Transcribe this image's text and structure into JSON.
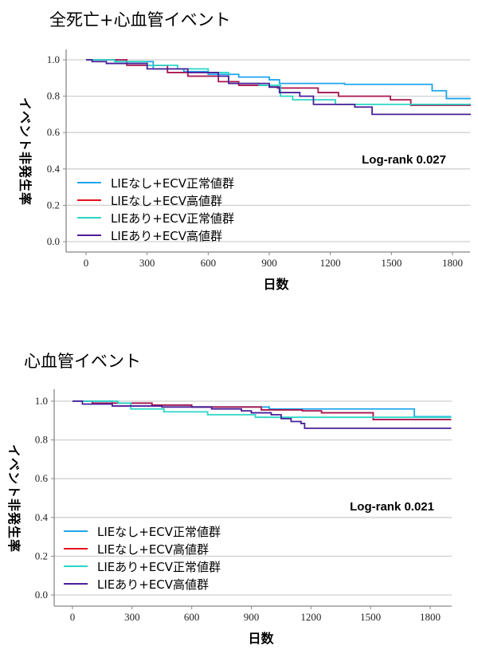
{
  "chart_data": [
    {
      "type": "line",
      "subtype": "kaplan-meier step",
      "title": "全死亡+心血管イベント",
      "xlabel": "日数",
      "ylabel": "イベント非発生率",
      "xticks": [
        0,
        300,
        600,
        900,
        1200,
        1500,
        1800
      ],
      "yticks": [
        "0.0",
        "0.2",
        "0.4",
        "0.6",
        "0.8",
        "1.0"
      ],
      "xlim": [
        -100,
        1890
      ],
      "ylim": [
        -0.05,
        1.05
      ],
      "grid": "horizontal",
      "legend_placement": "bottom-left",
      "annotation": "Log-rank 0.027",
      "series": [
        {
          "name": "LIEなし+ECV正常値群",
          "color": "#1ea5ee",
          "legend_color": "#1ea5ee",
          "x": [
            0,
            150,
            330,
            480,
            600,
            750,
            900,
            950,
            1270,
            1700,
            1770,
            1890
          ],
          "y": [
            1.0,
            0.99,
            0.95,
            0.935,
            0.92,
            0.905,
            0.89,
            0.87,
            0.865,
            0.83,
            0.787,
            0.787
          ]
        },
        {
          "name": "LIEなし+ECV高値群",
          "color": "#a8154d",
          "legend_color": "#e3101e",
          "x": [
            0,
            200,
            400,
            500,
            650,
            750,
            900,
            940,
            1140,
            1240,
            1495,
            1595,
            1890
          ],
          "y": [
            1.0,
            0.97,
            0.93,
            0.91,
            0.88,
            0.86,
            0.85,
            0.845,
            0.82,
            0.8,
            0.78,
            0.75,
            0.75
          ]
        },
        {
          "name": "LIEあり+ECV正常値群",
          "color": "#2bd6c6",
          "legend_color": "#2bd6c6",
          "x": [
            0,
            140,
            300,
            450,
            600,
            700,
            850,
            955,
            1015,
            1225,
            1890
          ],
          "y": [
            1.0,
            0.99,
            0.97,
            0.95,
            0.93,
            0.87,
            0.86,
            0.8,
            0.78,
            0.755,
            0.755
          ]
        },
        {
          "name": "LIEあり+ECV高値群",
          "color": "#4a1f98",
          "legend_color": "#4a1f98",
          "x": [
            0,
            30,
            100,
            300,
            500,
            650,
            700,
            900,
            950,
            1050,
            1117,
            1320,
            1405,
            1890
          ],
          "y": [
            1.0,
            0.99,
            0.98,
            0.95,
            0.93,
            0.91,
            0.87,
            0.85,
            0.82,
            0.8,
            0.755,
            0.74,
            0.7,
            0.7
          ]
        }
      ]
    },
    {
      "type": "line",
      "subtype": "kaplan-meier step",
      "title": "心血管イベント",
      "xlabel": "日数",
      "ylabel": "イベント非発生率",
      "xticks": [
        0,
        300,
        600,
        900,
        1200,
        1500,
        1800
      ],
      "yticks": [
        "0.0",
        "0.2",
        "0.4",
        "0.6",
        "0.8",
        "1.0"
      ],
      "xlim": [
        -100,
        1906
      ],
      "ylim": [
        -0.05,
        1.05
      ],
      "grid": "horizontal",
      "legend_placement": "bottom-left",
      "annotation": "Log-rank 0.021",
      "series": [
        {
          "name": "LIEなし+ECV正常値群",
          "color": "#1ea5ee",
          "legend_color": "#1ea5ee",
          "x": [
            0,
            200,
            400,
            600,
            990,
            1720,
            1906
          ],
          "y": [
            1.0,
            0.99,
            0.98,
            0.97,
            0.96,
            0.92,
            0.92
          ]
        },
        {
          "name": "LIEなし+ECV高値群",
          "color": "#a8154d",
          "legend_color": "#e3101e",
          "x": [
            0,
            100,
            400,
            600,
            950,
            1156,
            1253,
            1513,
            1906
          ],
          "y": [
            1.0,
            0.99,
            0.98,
            0.97,
            0.955,
            0.95,
            0.94,
            0.905,
            0.905
          ]
        },
        {
          "name": "LIEあり+ECV正常値群",
          "color": "#2bd6c6",
          "legend_color": "#2bd6c6",
          "x": [
            0,
            230,
            293,
            460,
            680,
            920,
            1906
          ],
          "y": [
            1.0,
            0.99,
            0.96,
            0.945,
            0.93,
            0.917,
            0.917
          ]
        },
        {
          "name": "LIEあり+ECV高値群",
          "color": "#4a1f98",
          "legend_color": "#4a1f98",
          "x": [
            0,
            50,
            200,
            450,
            700,
            850,
            900,
            1000,
            1050,
            1100,
            1150,
            1168,
            1906
          ],
          "y": [
            1.0,
            0.985,
            0.975,
            0.97,
            0.96,
            0.95,
            0.94,
            0.93,
            0.91,
            0.895,
            0.885,
            0.86,
            0.86
          ]
        }
      ]
    }
  ]
}
